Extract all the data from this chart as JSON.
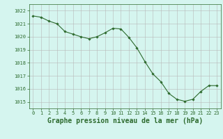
{
  "hours": [
    0,
    1,
    2,
    3,
    4,
    5,
    6,
    7,
    8,
    9,
    10,
    11,
    12,
    13,
    14,
    15,
    16,
    17,
    18,
    19,
    20,
    21,
    22,
    23
  ],
  "pressure": [
    1021.6,
    1021.5,
    1021.2,
    1021.0,
    1020.4,
    1020.2,
    1020.0,
    1019.85,
    1020.0,
    1020.3,
    1020.65,
    1020.6,
    1019.95,
    1019.15,
    1018.1,
    1017.15,
    1016.55,
    1015.65,
    1015.2,
    1015.05,
    1015.2,
    1015.8,
    1016.25,
    1016.25
  ],
  "line_color": "#2d6a2d",
  "marker": "D",
  "marker_size": 1.8,
  "bg_color": "#d5f5ef",
  "grid_color": "#b8b8b8",
  "ylim": [
    1014.5,
    1022.5
  ],
  "xlim": [
    -0.5,
    23.5
  ],
  "yticks": [
    1015,
    1016,
    1017,
    1018,
    1019,
    1020,
    1021,
    1022
  ],
  "xticks": [
    0,
    1,
    2,
    3,
    4,
    5,
    6,
    7,
    8,
    9,
    10,
    11,
    12,
    13,
    14,
    15,
    16,
    17,
    18,
    19,
    20,
    21,
    22,
    23
  ],
  "xlabel": "Graphe pression niveau de la mer (hPa)",
  "tick_color": "#2d6a2d",
  "tick_fontsize": 5.0,
  "xlabel_fontsize": 7.0,
  "label_color": "#2d6a2d",
  "spine_color": "#2d6a2d"
}
